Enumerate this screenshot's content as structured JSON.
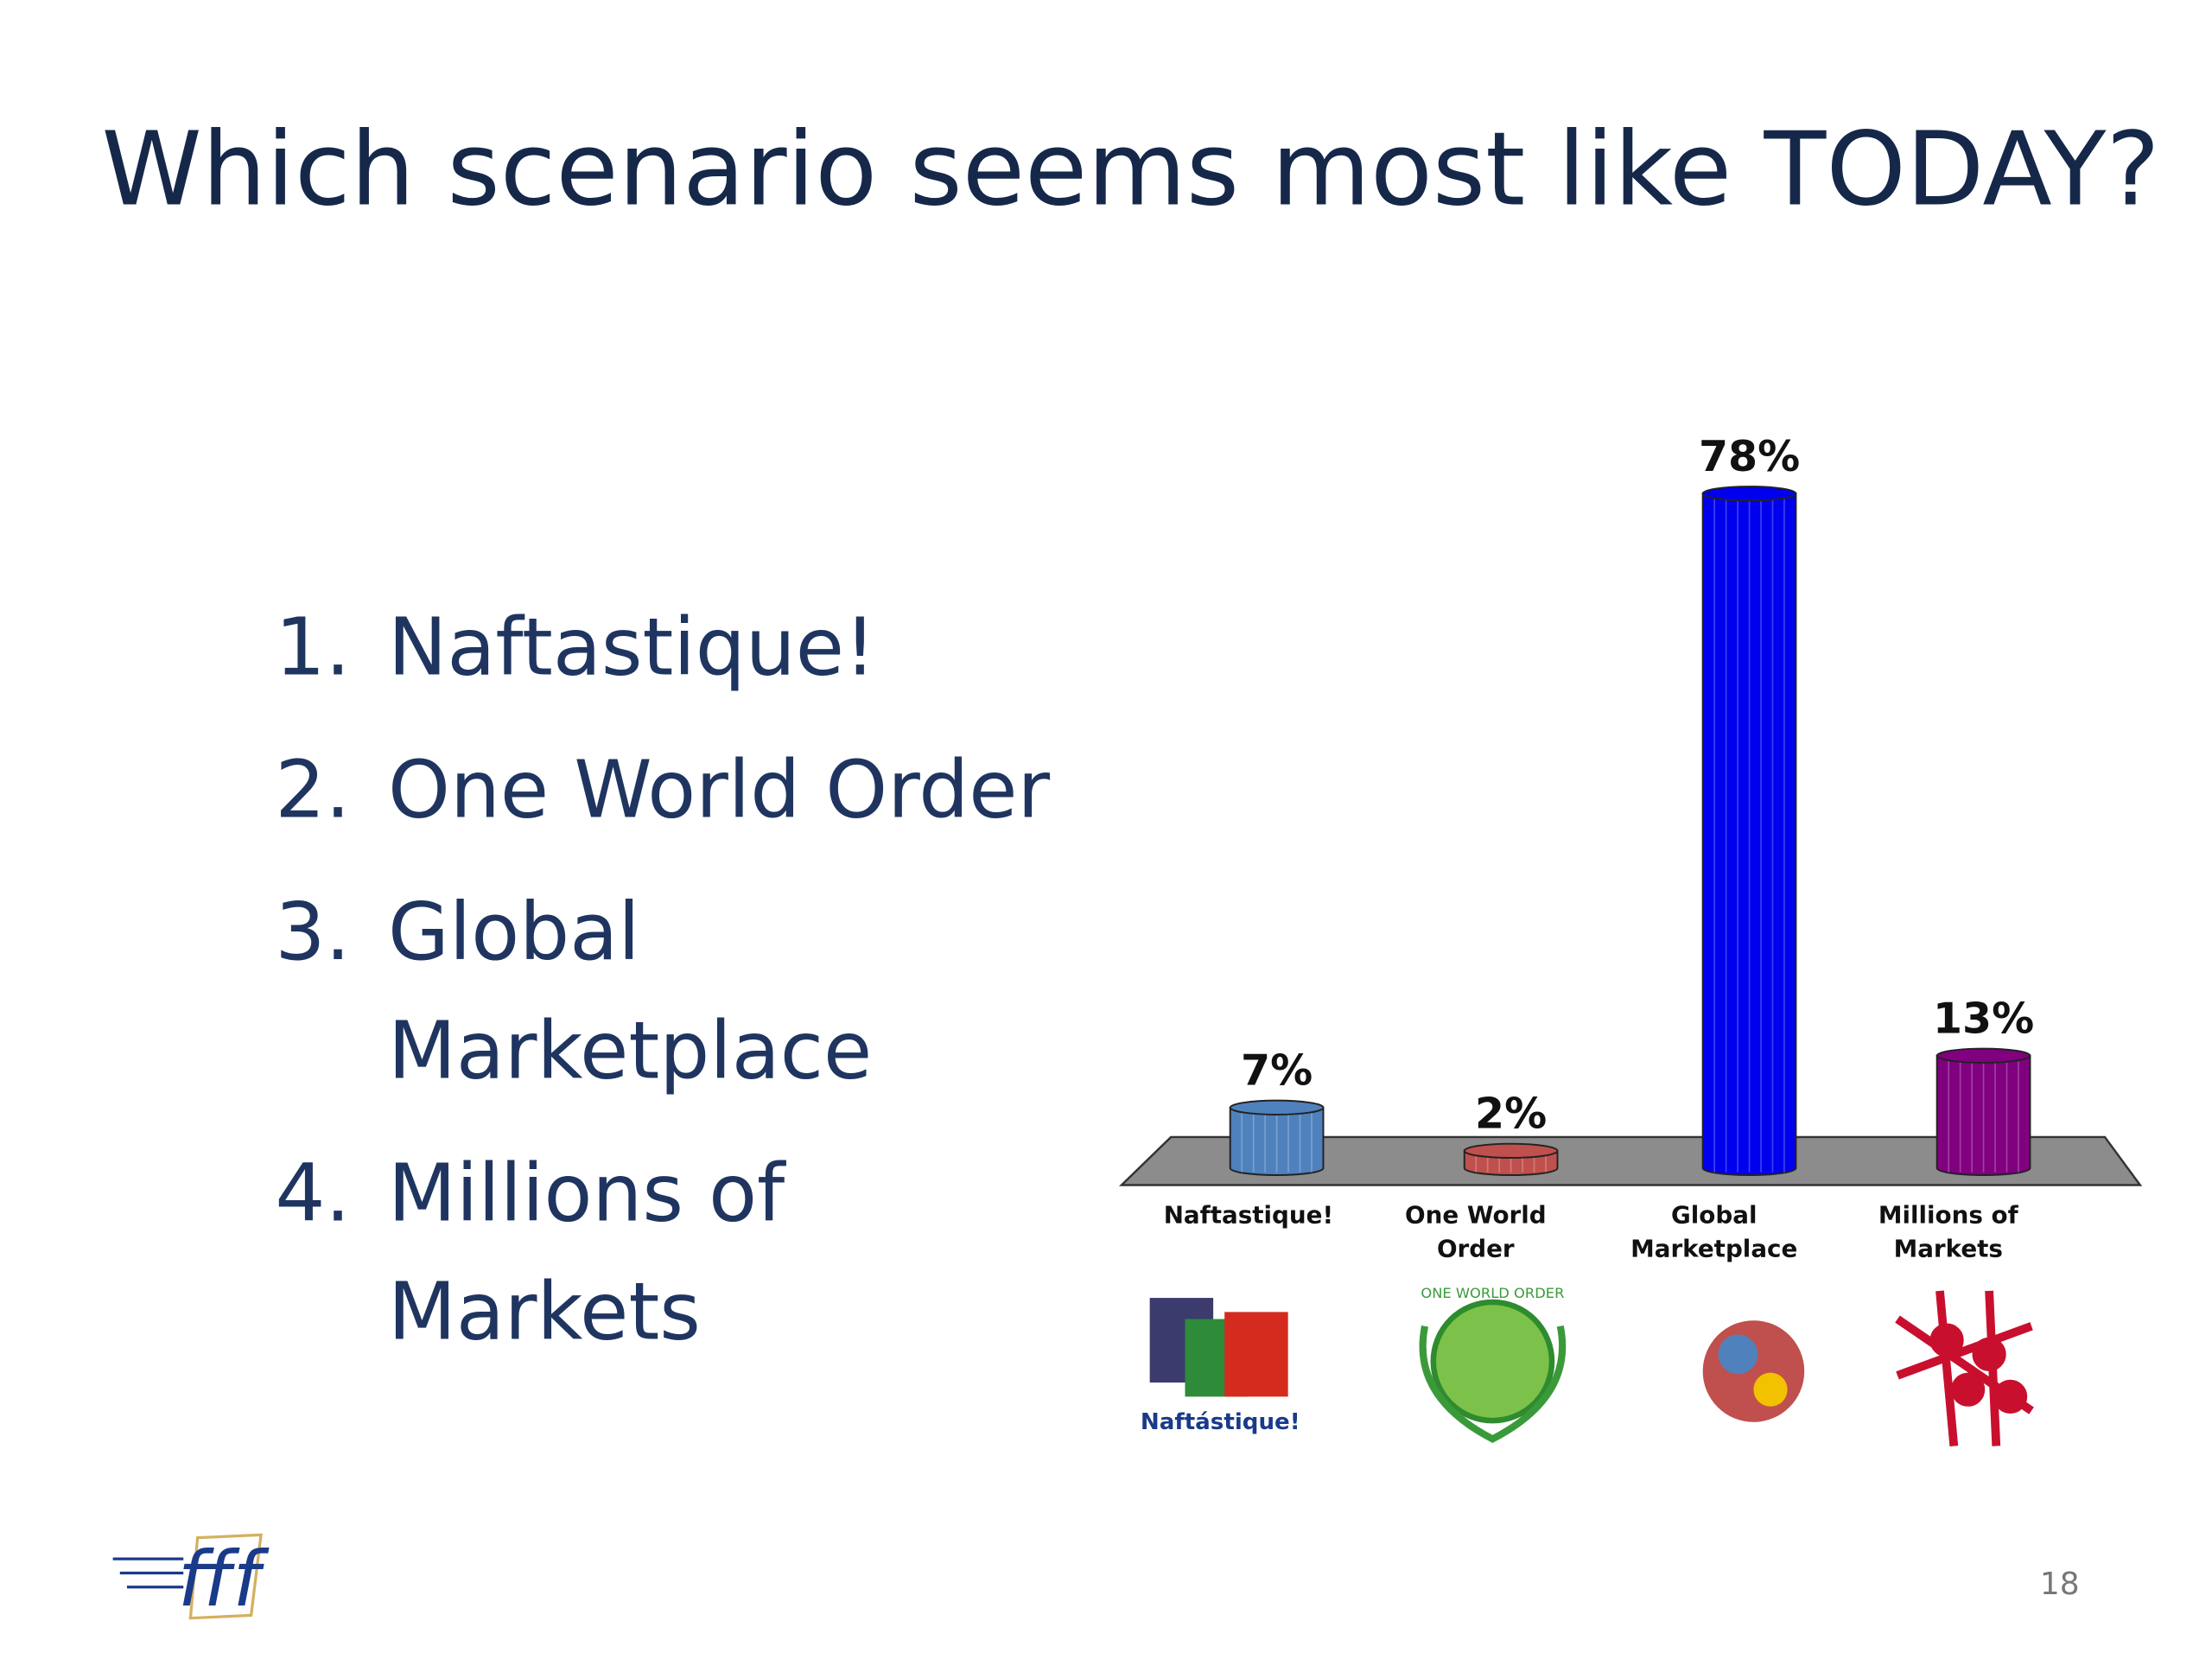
{
  "title": "Which scenario seems most like TODAY?",
  "list": [
    {
      "marker": "1.",
      "lines": [
        "Naftastique!"
      ]
    },
    {
      "marker": "2.",
      "lines": [
        "One World Order"
      ]
    },
    {
      "marker": "3.",
      "lines": [
        "Global",
        "Marketplace"
      ]
    },
    {
      "marker": "4.",
      "lines": [
        "Millions of",
        "Markets"
      ]
    }
  ],
  "logo": "fff",
  "page_number": "18",
  "chart_data": {
    "type": "bar",
    "categories": [
      "Naftastique!",
      "One World Order",
      "Global Marketplace",
      "Millions of Markets"
    ],
    "values": [
      7,
      2,
      78,
      13
    ],
    "value_labels": [
      "7%",
      "2%",
      "78%",
      "13%"
    ],
    "colors": [
      "#4f81bd",
      "#c0504d",
      "#0000ee",
      "#800080"
    ]
  }
}
